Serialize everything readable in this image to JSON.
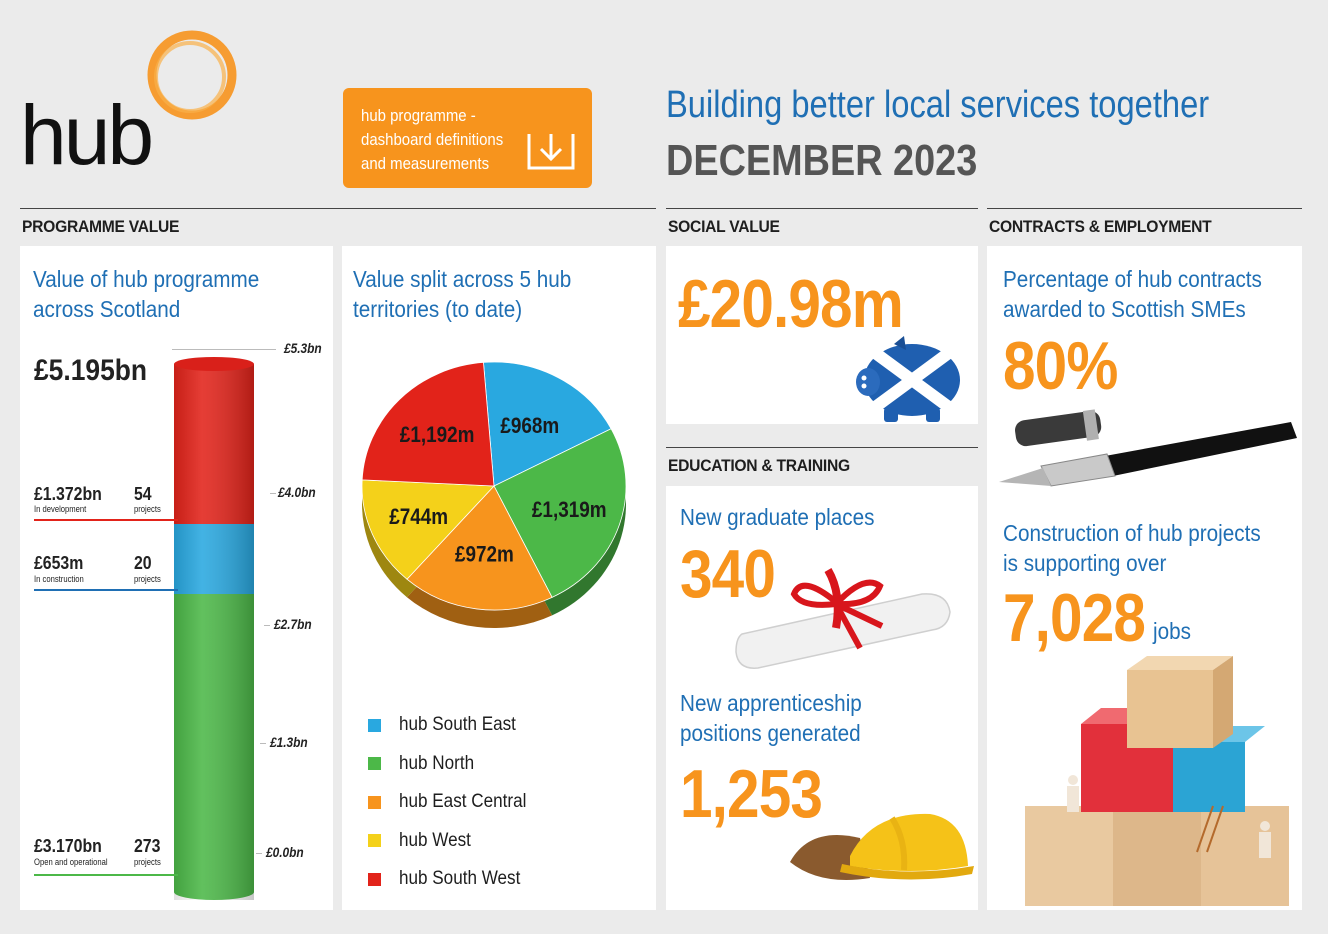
{
  "header": {
    "logo_text": "hub",
    "download_button": {
      "line1": "hub programme -",
      "line2": "dashboard definitions",
      "line3": "and measurements"
    },
    "tagline": "Building better local services together",
    "date": "DECEMBER 2023"
  },
  "colors": {
    "orange": "#f7941d",
    "blue_title": "#1f6fb4",
    "south_east": "#29a8e0",
    "north": "#4cb848",
    "east_central": "#f7941d",
    "west": "#f4d11a",
    "south_west": "#e2231a"
  },
  "programme": {
    "section_title": "PROGRAMME VALUE",
    "title_line1": "Value of hub programme",
    "title_line2": "across Scotland",
    "total": "£5.195bn",
    "stats": [
      {
        "value": "£1.372bn",
        "label": "In development",
        "count": "54",
        "count_label": "projects"
      },
      {
        "value": "£653m",
        "label": "In construction",
        "count": "20",
        "count_label": "projects"
      },
      {
        "value": "£3.170bn",
        "label": "Open and operational",
        "count": "273",
        "count_label": "projects"
      }
    ],
    "ticks": [
      "£5.3bn",
      "£4.0bn",
      "£2.7bn",
      "£1.3bn",
      "£0.0bn"
    ]
  },
  "chart_data": {
    "type": "pie",
    "title": "Value split across 5 hub territories (to date)",
    "title_line1": "Value split across 5 hub",
    "title_line2": "territories (to date)",
    "slices": [
      {
        "name": "hub South East",
        "value": 968,
        "label": "£968m",
        "color": "#29a8e0"
      },
      {
        "name": "hub North",
        "value": 1319,
        "label": "£1,319m",
        "color": "#4cb848"
      },
      {
        "name": "hub East Central",
        "value": 972,
        "label": "£972m",
        "color": "#f7941d"
      },
      {
        "name": "hub West",
        "value": 744,
        "label": "£744m",
        "color": "#f4d11a"
      },
      {
        "name": "hub South West",
        "value": 1192,
        "label": "£1,192m",
        "color": "#e2231a"
      }
    ],
    "legend": [
      "hub South East",
      "hub North",
      "hub East Central",
      "hub West",
      "hub South West"
    ]
  },
  "social": {
    "section_title": "SOCIAL VALUE",
    "value": "£20.98m"
  },
  "education": {
    "section_title": "EDUCATION & TRAINING",
    "graduate_title": "New graduate places",
    "graduate_value": "340",
    "apprentice_line1": "New apprenticeship",
    "apprentice_line2": "positions generated",
    "apprentice_value": "1,253"
  },
  "contracts": {
    "section_title": "CONTRACTS & EMPLOYMENT",
    "sme_line1": "Percentage of hub contracts",
    "sme_line2": "awarded to Scottish SMEs",
    "sme_value": "80%",
    "jobs_line1": "Construction of hub projects",
    "jobs_line2": "is supporting over",
    "jobs_value": "7,028",
    "jobs_unit": "jobs"
  }
}
